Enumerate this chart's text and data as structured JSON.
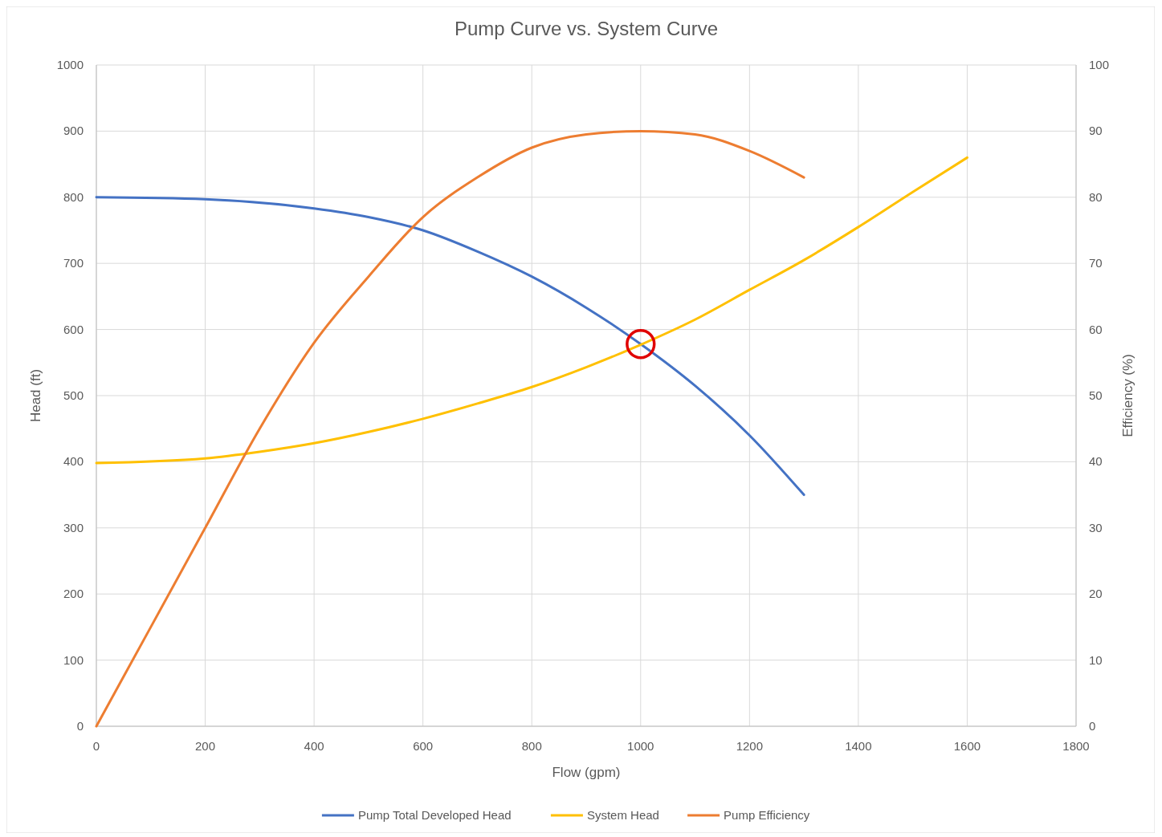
{
  "chart_data": {
    "type": "line",
    "title": "Pump Curve vs. System Curve",
    "xlabel": "Flow (gpm)",
    "ylabel": "Head (ft)",
    "y2label": "Efficiency (%)",
    "xlim": [
      0,
      1800
    ],
    "xticks": [
      0,
      200,
      400,
      600,
      800,
      1000,
      1200,
      1400,
      1600,
      1800
    ],
    "ylim": [
      0,
      1000
    ],
    "yticks": [
      0,
      100,
      200,
      300,
      400,
      500,
      600,
      700,
      800,
      900,
      1000
    ],
    "y2lim": [
      0,
      100
    ],
    "y2ticks": [
      0,
      10,
      20,
      30,
      40,
      50,
      60,
      70,
      80,
      90,
      100
    ],
    "grid": true,
    "legend": "bottom",
    "marker": "none",
    "line_style": "solid",
    "series": [
      {
        "name": "Pump Total Developed Head",
        "color": "#4472c4",
        "x": [
          0,
          200,
          400,
          500,
          600,
          700,
          800,
          900,
          1000,
          1100,
          1200,
          1300
        ],
        "values": [
          800,
          797,
          783,
          770,
          750,
          718,
          680,
          633,
          578,
          515,
          440,
          350
        ]
      },
      {
        "name": "System Head",
        "color": "#ffc000",
        "x": [
          0,
          200,
          300,
          400,
          500,
          600,
          700,
          800,
          900,
          1000,
          1100,
          1200,
          1300,
          1400,
          1500,
          1600
        ],
        "values": [
          398,
          405,
          415,
          428,
          445,
          465,
          488,
          513,
          543,
          577,
          615,
          660,
          705,
          755,
          808,
          860
        ]
      },
      {
        "name": "Pump Efficiency",
        "color": "#ed7d31",
        "axis": "y2",
        "x": [
          0,
          100,
          200,
          300,
          400,
          500,
          600,
          700,
          800,
          900,
          1000,
          1100,
          1200,
          1300
        ],
        "values": [
          0,
          15,
          30,
          45,
          58,
          68,
          77,
          83,
          87.5,
          89.5,
          90,
          89.5,
          87,
          83
        ]
      },
      {
        "type": "scatter",
        "color": "#e00000",
        "marker": "circle",
        "x": [
          1000
        ],
        "values": [
          578
        ]
      }
    ]
  }
}
